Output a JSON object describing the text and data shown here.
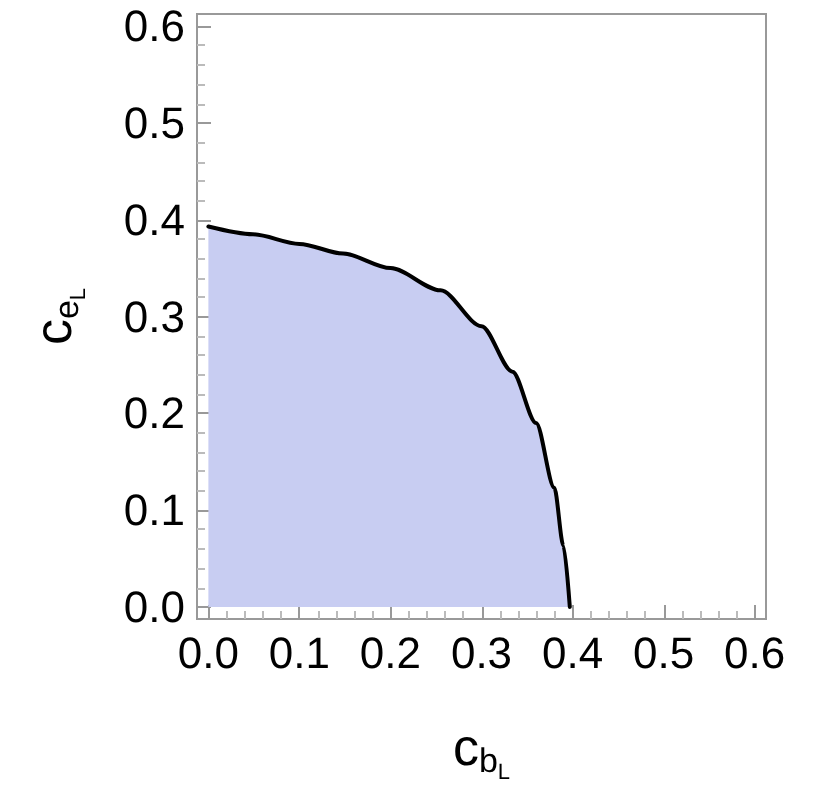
{
  "chart_data": {
    "type": "area",
    "xlabel": "c$_{b}$$_{L}$",
    "ylabel": "c$_{e}$$_{L}$",
    "series": [
      {
        "color": "#c8cdf2",
        "x": [
          0,
          0.049,
          0.1,
          0.148,
          0.2,
          0.255,
          0.3,
          0.334,
          0.36,
          0.38,
          0.39,
          0.397
        ],
        "values": [
          0.393,
          0.385,
          0.375,
          0.365,
          0.35,
          0.327,
          0.29,
          0.243,
          0.19,
          0.123,
          0.063,
          0
        ]
      }
    ],
    "xlim": [
      -0.0125,
      0.6125
    ],
    "ylim": [
      -0.0125,
      0.6125
    ],
    "xticks": [
      {
        "value": 0,
        "label": "0.0"
      },
      {
        "value": 0.1,
        "label": "0.1"
      },
      {
        "value": 0.2,
        "label": "0.2"
      },
      {
        "value": 0.3,
        "label": "0.3"
      },
      {
        "value": 0.4,
        "label": "0.4"
      },
      {
        "value": 0.5,
        "label": "0.5"
      },
      {
        "value": 0.6,
        "label": "0.6"
      }
    ],
    "yticks": [
      {
        "value": 0,
        "label": "0.0"
      },
      {
        "value": 0.1,
        "label": "0.1"
      },
      {
        "value": 0.2,
        "label": "0.2"
      },
      {
        "value": 0.3,
        "label": "0.3"
      },
      {
        "value": 0.4,
        "label": "0.4"
      },
      {
        "value": 0.5,
        "label": "0.5"
      },
      {
        "value": 0.6,
        "label": "0.6"
      }
    ],
    "line_style": "solid"
  }
}
